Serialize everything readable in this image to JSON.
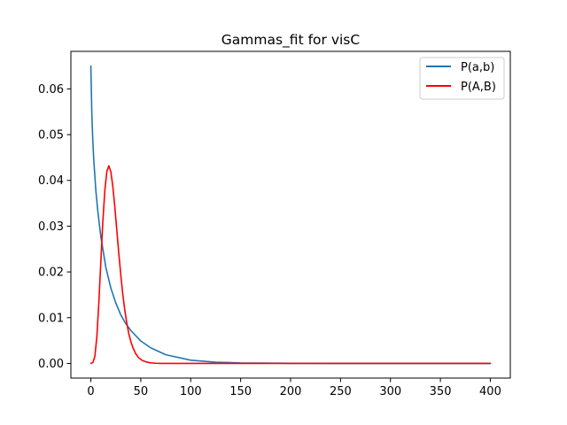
{
  "chart_data": {
    "type": "line",
    "title": "Gammas_fit for visC",
    "xlabel": "",
    "ylabel": "",
    "xlim": [
      -20,
      420
    ],
    "ylim": [
      -0.0032,
      0.0682
    ],
    "xticks": [
      0,
      50,
      100,
      150,
      200,
      250,
      300,
      350,
      400
    ],
    "xtick_labels": [
      "0",
      "50",
      "100",
      "150",
      "200",
      "250",
      "300",
      "350",
      "400"
    ],
    "yticks": [
      0.0,
      0.01,
      0.02,
      0.03,
      0.04,
      0.05,
      0.06
    ],
    "ytick_labels": [
      "0.00",
      "0.01",
      "0.02",
      "0.03",
      "0.04",
      "0.05",
      "0.06"
    ],
    "grid": false,
    "legend_position": "upper right",
    "series": [
      {
        "name": "P(a,b)",
        "color": "#1f77b4",
        "x": [
          0,
          1,
          2,
          3,
          5,
          7,
          10,
          15,
          20,
          25,
          30,
          35,
          40,
          50,
          60,
          75,
          100,
          125,
          150,
          200,
          250,
          300,
          350,
          400
        ],
        "y": [
          0.065,
          0.0545,
          0.0485,
          0.0442,
          0.0378,
          0.0332,
          0.0277,
          0.021,
          0.0165,
          0.0132,
          0.0106,
          0.0087,
          0.0072,
          0.0049,
          0.0034,
          0.0019,
          0.0007,
          0.00028,
          0.00011,
          2e-05,
          0.0,
          0.0,
          0.0,
          0.0
        ]
      },
      {
        "name": "P(A,B)",
        "color": "#ff0000",
        "x": [
          0,
          2,
          4,
          6,
          8,
          10,
          12,
          14,
          16,
          18,
          20,
          22,
          24,
          26,
          28,
          30,
          32,
          34,
          36,
          38,
          40,
          42,
          45,
          48,
          52,
          56,
          60,
          65,
          70,
          80,
          90,
          100,
          150,
          200,
          250,
          300,
          350,
          400
        ],
        "y": [
          0.0,
          0.0002,
          0.0015,
          0.0058,
          0.0132,
          0.0222,
          0.031,
          0.0378,
          0.0419,
          0.0432,
          0.0419,
          0.0387,
          0.0342,
          0.0291,
          0.024,
          0.0193,
          0.0151,
          0.0116,
          0.0088,
          0.0065,
          0.0048,
          0.0035,
          0.0021,
          0.0012,
          0.0006,
          0.0003,
          0.00013,
          4e-05,
          1e-05,
          0.0,
          0.0,
          0.0,
          0.0,
          0.0,
          0.0,
          0.0,
          0.0,
          0.0
        ]
      }
    ]
  }
}
